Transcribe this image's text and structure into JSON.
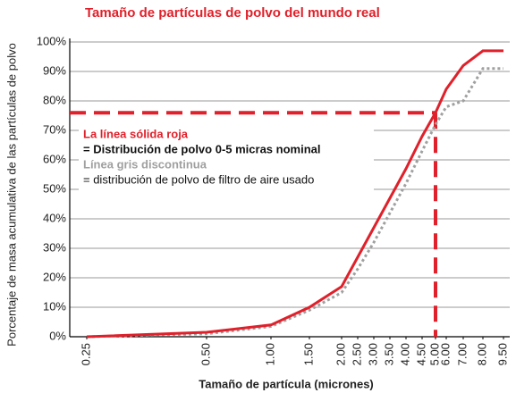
{
  "chart_data": {
    "type": "line",
    "title": "Tamaño de partículas de polvo del mundo real",
    "y_label": "Porcentaje de masa acumulativa de las partículas de polvo",
    "x_label": "Tamaño de partícula (micrones)",
    "categories": [
      "0.25",
      "0.50",
      "1.00",
      "1.50",
      "2.00",
      "2.50",
      "3.00",
      "3.50",
      "4.00",
      "4.50",
      "5.00",
      "6.00",
      "7.00",
      "8.00",
      "9.50"
    ],
    "series": [
      {
        "name": "La línea sólida roja",
        "color": "#e0202a",
        "style": "solid",
        "values": [
          0,
          1.5,
          4,
          10,
          17,
          27,
          37,
          47,
          57,
          68,
          76,
          84,
          92,
          97,
          97
        ]
      },
      {
        "name": "Línea gris discontinua",
        "color": "#a0a0a0",
        "style": "dotted",
        "values": [
          0,
          1,
          3.5,
          9,
          15,
          23,
          32,
          42,
          52,
          63,
          72,
          78,
          80,
          91,
          91
        ]
      }
    ],
    "annotations": [
      "= Distribución de polvo 0-5 micras nominal",
      "= distribución de polvo de filtro de aire usado"
    ],
    "reference_y": 76,
    "reference_x": "5.00",
    "ylim": [
      0,
      100
    ],
    "yticks": [
      {
        "value": 0,
        "label": "0%"
      },
      {
        "value": 10,
        "label": "10%"
      },
      {
        "value": 20,
        "label": "20%"
      },
      {
        "value": 30,
        "label": "30%"
      },
      {
        "value": 40,
        "label": "40%"
      },
      {
        "value": 50,
        "label": "50%"
      },
      {
        "value": 60,
        "label": "60%"
      },
      {
        "value": 70,
        "label": "70%"
      },
      {
        "value": 80,
        "label": "80%"
      },
      {
        "value": 90,
        "label": "90%"
      },
      {
        "value": 100,
        "label": "100%"
      }
    ],
    "grid": true
  }
}
